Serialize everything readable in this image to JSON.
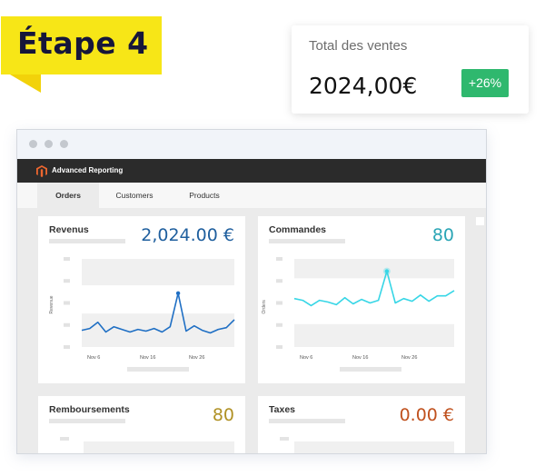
{
  "step": {
    "label": "Étape 4"
  },
  "total_card": {
    "label": "Total des ventes",
    "value": "2024,00€",
    "change": "+26%",
    "change_color": "#2fb86e"
  },
  "browser": {
    "app_title": "Advanced Reporting",
    "tabs": [
      {
        "label": "Orders",
        "active": true
      },
      {
        "label": "Customers",
        "active": false
      },
      {
        "label": "Products",
        "active": false
      }
    ]
  },
  "cards": {
    "revenus": {
      "title": "Revenus",
      "value": "2,024.00 €",
      "value_color": "#1f5f9e"
    },
    "commandes": {
      "title": "Commandes",
      "value": "80",
      "value_color": "#2aa5b5"
    },
    "remboursements": {
      "title": "Remboursements",
      "value": "80",
      "value_color": "#b09124"
    },
    "taxes": {
      "title": "Taxes",
      "value": "0.00 €",
      "value_color": "#c0511e"
    }
  },
  "chart_data": [
    {
      "type": "line",
      "ylabel": "Revenue",
      "x_ticks": [
        "Nov 6",
        "Nov 16",
        "Nov 26"
      ],
      "series": [
        {
          "values": [
            19,
            21,
            28,
            17,
            23,
            20,
            17,
            20,
            18,
            21,
            17,
            23,
            61,
            18,
            24,
            19,
            16,
            20,
            22,
            31
          ]
        }
      ],
      "ylim": [
        0,
        100
      ],
      "color": "#1f6fc4"
    },
    {
      "type": "line",
      "ylabel": "Orders",
      "x_ticks": [
        "Nov 6",
        "Nov 16",
        "Nov 26"
      ],
      "series": [
        {
          "values": [
            55,
            53,
            47,
            53,
            51,
            48,
            56,
            49,
            54,
            50,
            53,
            86,
            50,
            55,
            52,
            59,
            52,
            58,
            58,
            64
          ]
        }
      ],
      "ylim": [
        0,
        100
      ],
      "color": "#37d6e6"
    }
  ]
}
